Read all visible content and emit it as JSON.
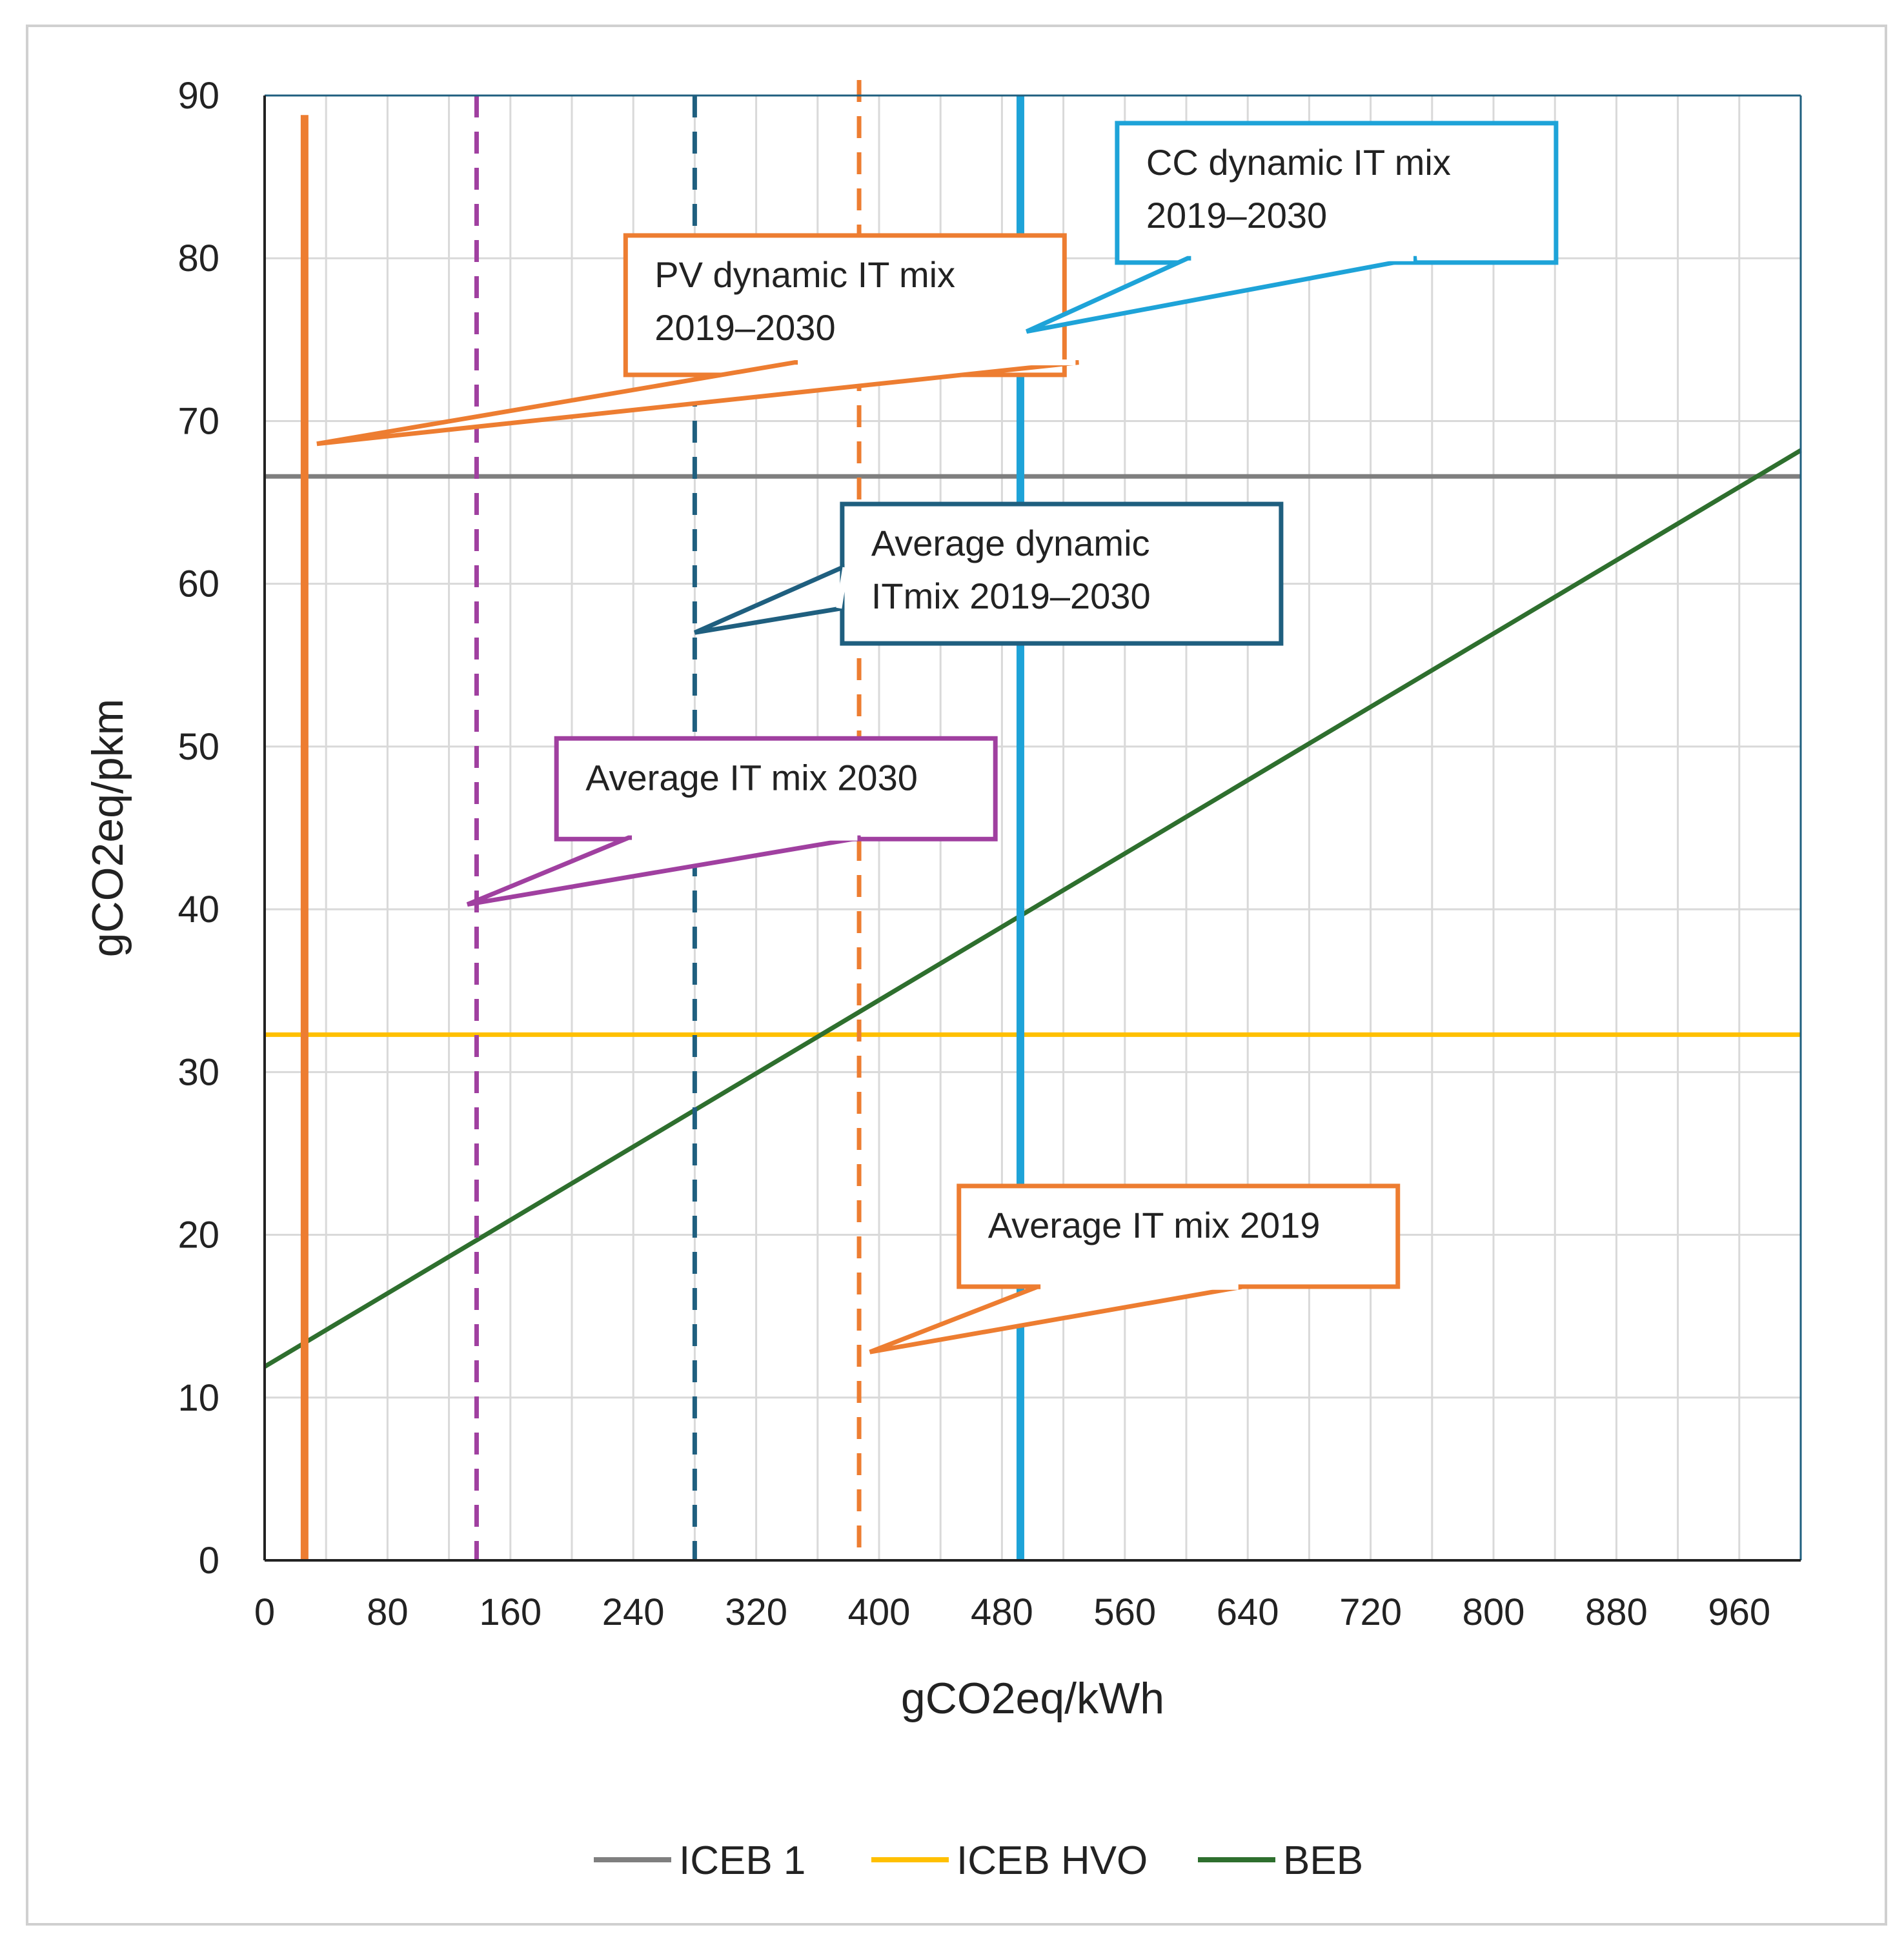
{
  "chart_data": {
    "type": "line",
    "title": "",
    "xlabel": "gCO2eq/kWh",
    "ylabel": "gCO2eq/pkm",
    "xlim": [
      0,
      1000
    ],
    "ylim": [
      0,
      90
    ],
    "x_ticks": [
      "0",
      "80",
      "160",
      "240",
      "320",
      "400",
      "480",
      "560",
      "640",
      "720",
      "800",
      "880",
      "960"
    ],
    "y_ticks": [
      "0",
      "10",
      "20",
      "30",
      "40",
      "50",
      "60",
      "70",
      "80",
      "90"
    ],
    "grid": true,
    "legend_position": "bottom",
    "series": [
      {
        "name": "ICEB 1",
        "color": "#7f7f7f",
        "x": [
          0,
          1000
        ],
        "y": [
          66.6,
          66.6
        ]
      },
      {
        "name": "ICEB HVO",
        "color": "#ffc000",
        "x": [
          0,
          1000
        ],
        "y": [
          32.3,
          32.3
        ]
      },
      {
        "name": "BEB",
        "color": "#2e6f2e",
        "x": [
          0,
          1000
        ],
        "y": [
          11.9,
          68.2
        ]
      }
    ],
    "reference_lines": [
      {
        "id": "pv",
        "x": 26,
        "color": "#ed7d31",
        "style": "solid",
        "label": "PV dynamic IT mix 2019-2030"
      },
      {
        "id": "it2030",
        "x": 138,
        "color": "#a040a0",
        "style": "dashed",
        "label": "Average IT mix 2030"
      },
      {
        "id": "dyn",
        "x": 280,
        "color": "#1f5f7f",
        "style": "dashed",
        "label": "Average dynamic ITmix 2019-2030"
      },
      {
        "id": "it2019",
        "x": 387,
        "color": "#ed7d31",
        "style": "dashed",
        "label": "Average IT mix 2019"
      },
      {
        "id": "cc",
        "x": 492,
        "color": "#1ea3d8",
        "style": "solid",
        "label": "CC dynamic IT mix 2019-2030"
      }
    ],
    "annotations": [
      {
        "id": "pv",
        "lines": [
          "PV dynamic IT mix",
          "2019–2030"
        ],
        "color": "#ed7d31",
        "target": [
          34,
          68.6
        ]
      },
      {
        "id": "cc",
        "lines": [
          "CC  dynamic IT mix",
          "2019–2030"
        ],
        "color": "#1ea3d8",
        "target": [
          496,
          75.5
        ]
      },
      {
        "id": "dyn",
        "lines": [
          "Average dynamic",
          "ITmix 2019–2030"
        ],
        "color": "#1f5f7f",
        "target": [
          280,
          57
        ]
      },
      {
        "id": "it2030",
        "lines": [
          "Average IT mix 2030"
        ],
        "color": "#a040a0",
        "target": [
          132,
          40.3
        ]
      },
      {
        "id": "it2019",
        "lines": [
          "Average IT mix 2019"
        ],
        "color": "#ed7d31",
        "target": [
          394,
          12.8
        ]
      }
    ]
  }
}
